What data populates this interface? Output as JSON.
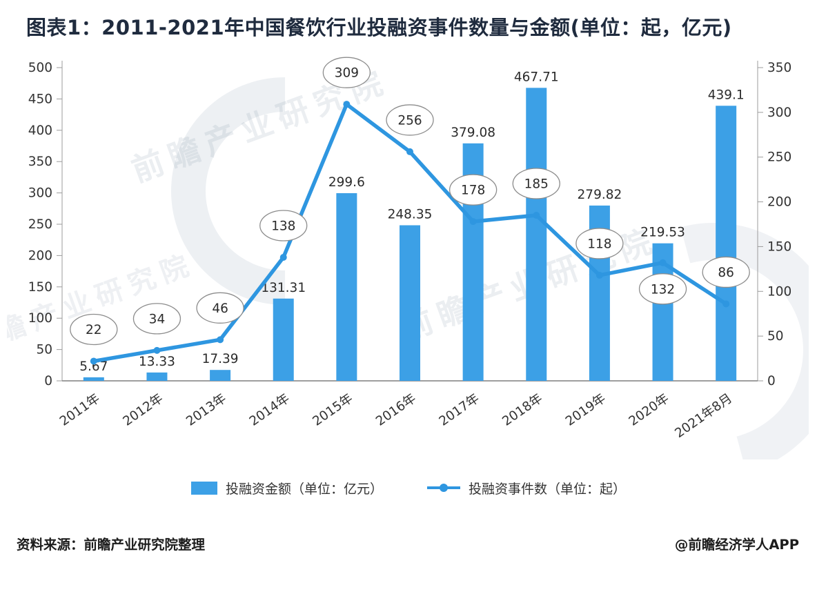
{
  "title": "图表1：2011-2021年中国餐饮行业投融资事件数量与金额(单位：起，亿元)",
  "watermark_text": "前瞻产业研究院",
  "footer": {
    "source": "资料来源：前瞻产业研究院整理",
    "credit": "@前瞻经济学人APP"
  },
  "colors": {
    "bar": "#3ca0e6",
    "line": "#2e96e0",
    "title": "#1f2b3e",
    "axis_text": "#333333",
    "label_text": "#2b2b2b",
    "bubble_border": "#8c8c8c",
    "axis_line": "#9b9b9b"
  },
  "chart_data": {
    "type": "bar+line combo",
    "categories": [
      "2011年",
      "2012年",
      "2013年",
      "2014年",
      "2015年",
      "2016年",
      "2017年",
      "2018年",
      "2019年",
      "2020年",
      "2021年8月"
    ],
    "series": [
      {
        "name": "投融资金额（单位：亿元）",
        "type": "bar",
        "axis": "left",
        "values": [
          5.67,
          13.33,
          17.39,
          131.31,
          299.6,
          248.35,
          379.08,
          467.71,
          279.82,
          219.53,
          439.1
        ]
      },
      {
        "name": "投融资事件数（单位：起）",
        "type": "line",
        "axis": "right",
        "values": [
          22,
          34,
          46,
          138,
          309,
          256,
          178,
          185,
          118,
          132,
          86
        ]
      }
    ],
    "left_axis": {
      "min": 0,
      "max": 500,
      "step": 50
    },
    "right_axis": {
      "min": 0,
      "max": 350,
      "step": 50
    },
    "grid": false,
    "legend_position": "bottom",
    "count_label_below_indices": [
      9
    ]
  }
}
